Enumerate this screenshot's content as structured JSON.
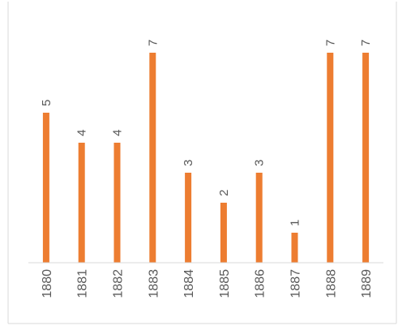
{
  "chart_data": {
    "type": "bar",
    "categories": [
      "1880",
      "1881",
      "1882",
      "1883",
      "1884",
      "1885",
      "1886",
      "1887",
      "1888",
      "1889"
    ],
    "values": [
      5,
      4,
      4,
      7,
      3,
      2,
      3,
      1,
      7,
      7
    ],
    "ylim": [
      0,
      7
    ],
    "grid": false,
    "legend": "none",
    "colors": {
      "bar": "#ED7D31",
      "axis": "#D9D9D9",
      "frame": "#D9D9D9",
      "text": "#595959"
    }
  }
}
